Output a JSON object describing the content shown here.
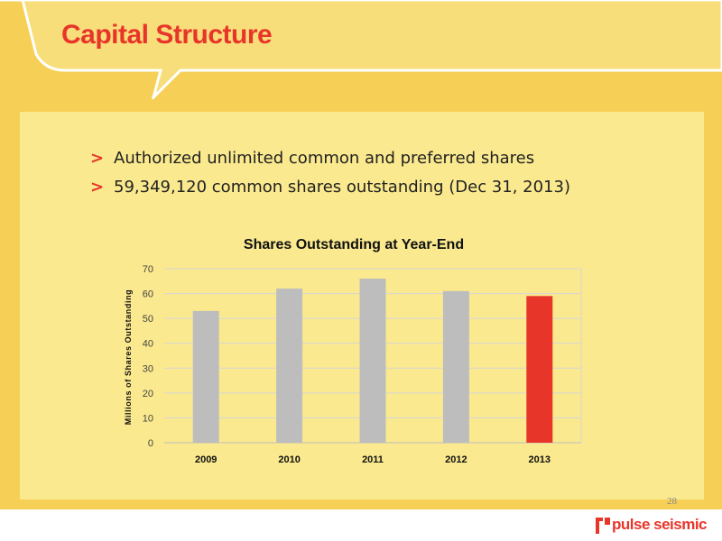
{
  "slide": {
    "title": "Capital Structure",
    "bullet_marker": ">",
    "bullets": [
      "Authorized unlimited common and preferred shares",
      "59,349,120 common shares outstanding (Dec 31, 2013)"
    ],
    "page_number": "28",
    "logo_text": "pulse seismic"
  },
  "colors": {
    "background": "#f6cf56",
    "panel": "#fae98e",
    "accent": "#e8352a",
    "bar_default": "#bdbdbd",
    "bar_highlight": "#e8352a"
  },
  "chart_data": {
    "type": "bar",
    "title": "Shares Outstanding at Year-End",
    "ylabel": "Millions of Shares Outstanding",
    "xlabel": "",
    "categories": [
      "2009",
      "2010",
      "2011",
      "2012",
      "2013"
    ],
    "values": [
      53,
      62,
      66,
      61,
      59
    ],
    "highlight_category": "2013",
    "ylim": [
      0,
      70
    ],
    "yticks": [
      0,
      10,
      20,
      30,
      40,
      50,
      60,
      70
    ],
    "grid": true,
    "legend": "none"
  }
}
